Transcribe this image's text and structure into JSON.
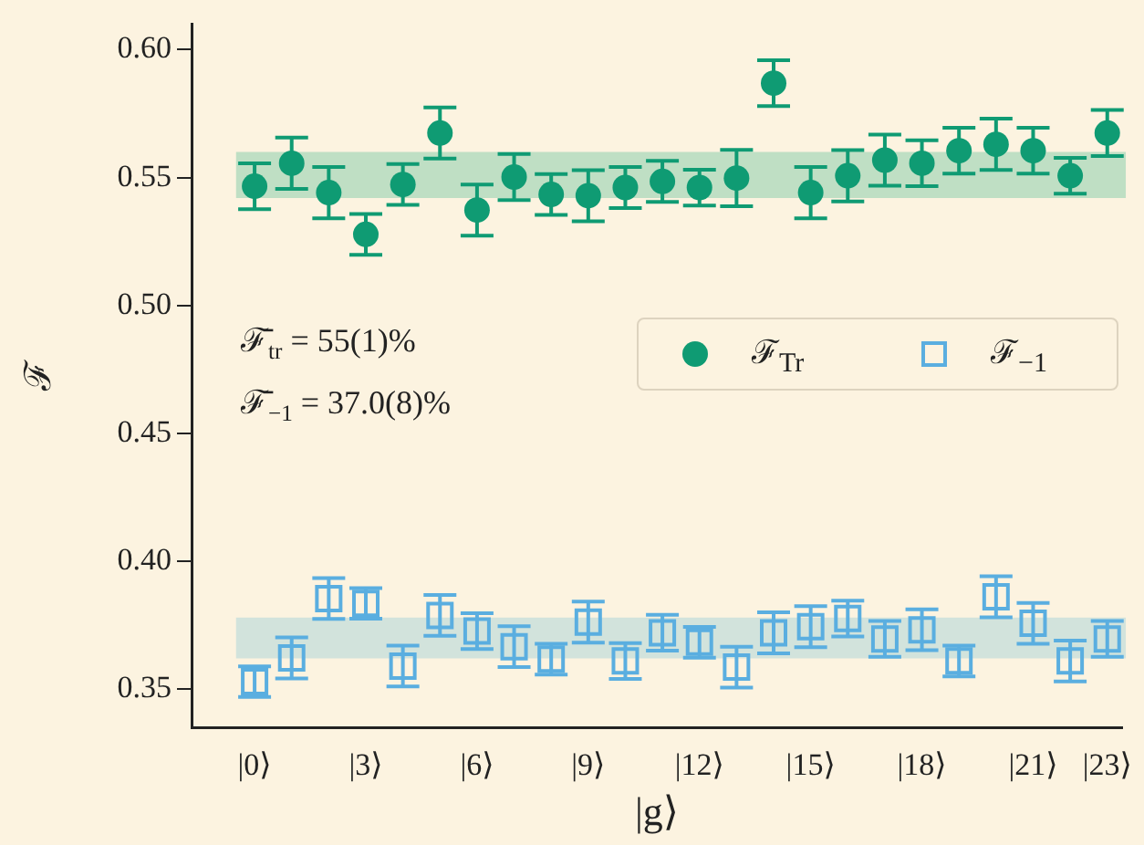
{
  "chart_data": {
    "type": "scatter",
    "xlabel": "|g⟩",
    "ylabel": "ℱ",
    "categories": [
      "|0⟩",
      null,
      null,
      "|3⟩",
      null,
      null,
      "|6⟩",
      null,
      null,
      "|9⟩",
      null,
      null,
      "|12⟩",
      null,
      null,
      "|15⟩",
      null,
      null,
      "|18⟩",
      null,
      null,
      "|21⟩",
      null,
      "|23⟩"
    ],
    "series": [
      {
        "name": "ℱ$_{Tr}$",
        "color": "#0f9b73",
        "marker": "circle",
        "values": [
          0.5466,
          0.5556,
          0.5441,
          0.5278,
          0.5473,
          0.5674,
          0.5373,
          0.5502,
          0.5434,
          0.5429,
          0.5461,
          0.5485,
          0.5461,
          0.5498,
          0.5869,
          0.5441,
          0.5507,
          0.5568,
          0.5556,
          0.5605,
          0.563,
          0.5605,
          0.5507,
          0.5674
        ],
        "errors": [
          0.009,
          0.01,
          0.01,
          0.008,
          0.008,
          0.01,
          0.01,
          0.009,
          0.008,
          0.01,
          0.008,
          0.008,
          0.007,
          0.011,
          0.009,
          0.01,
          0.01,
          0.01,
          0.009,
          0.009,
          0.01,
          0.009,
          0.007,
          0.009
        ]
      },
      {
        "name": "ℱ$_{−1}$",
        "color": "#5aaee0",
        "marker": "square",
        "values": [
          0.3529,
          0.3622,
          0.3854,
          0.3835,
          0.359,
          0.3788,
          0.3727,
          0.3666,
          0.3617,
          0.3762,
          0.361,
          0.372,
          0.3683,
          0.3586,
          0.372,
          0.3744,
          0.3776,
          0.3696,
          0.3732,
          0.361,
          0.3861,
          0.3757,
          0.361,
          0.3696
        ],
        "errors": [
          0.006,
          0.008,
          0.008,
          0.006,
          0.008,
          0.008,
          0.007,
          0.008,
          0.006,
          0.008,
          0.007,
          0.007,
          0.006,
          0.008,
          0.008,
          0.008,
          0.007,
          0.007,
          0.008,
          0.006,
          0.008,
          0.008,
          0.008,
          0.007
        ]
      }
    ],
    "bands": [
      {
        "axis": "y",
        "from": 0.542,
        "to": 0.56,
        "color": "#bfdfc4"
      },
      {
        "axis": "y",
        "from": 0.362,
        "to": 0.378,
        "color": "#d2e3dc"
      }
    ],
    "ylim": [
      0.335,
      0.61
    ],
    "yticks": [
      0.35,
      {
        "value": 0.4,
        "label": "0.40"
      },
      0.45,
      {
        "value": 0.5,
        "label": "0.50"
      },
      0.55,
      {
        "value": 0.6,
        "label": "0.60"
      }
    ],
    "annotations": [
      "ℱ̄$_{tr}$ = 55(1)%",
      "ℱ̄$_{−1}$ = 37.0(8)%"
    ],
    "legend": "right",
    "grid": false
  }
}
